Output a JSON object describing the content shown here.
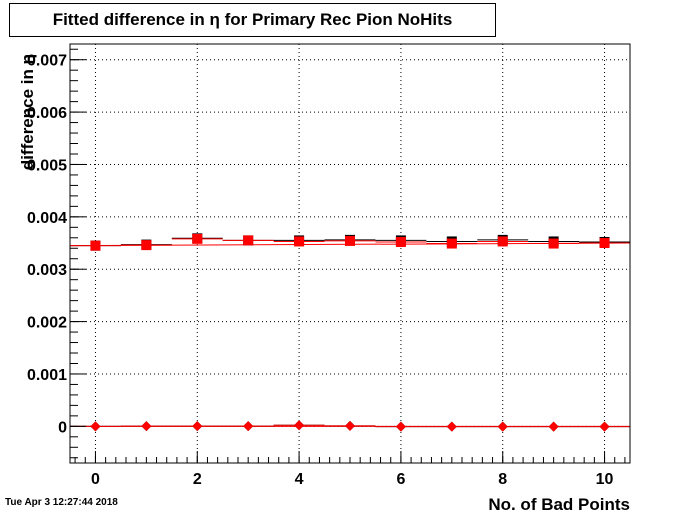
{
  "chart_data": {
    "type": "scatter",
    "title": "Fitted difference in  η for Primary Rec Pion NoHits",
    "xlabel": "No. of Bad Points",
    "ylabel": "difference in η",
    "xlim": [
      -0.5,
      10.5
    ],
    "ylim": [
      -0.0007,
      0.0073
    ],
    "grid": true,
    "x_ticks": [
      "0",
      "2",
      "4",
      "6",
      "8",
      "10"
    ],
    "y_ticks": [
      "0",
      "0.001",
      "0.002",
      "0.003",
      "0.004",
      "0.005",
      "0.006",
      "0.007"
    ],
    "series": [
      {
        "marker": "square",
        "color": "#ff0000",
        "x": [
          0,
          1,
          2,
          3,
          4,
          5,
          6,
          7,
          8,
          9,
          10
        ],
        "values": [
          0.00345,
          0.00346,
          0.00358,
          0.00355,
          0.00353,
          0.00354,
          0.00352,
          0.00349,
          0.00353,
          0.00349,
          0.0035
        ]
      },
      {
        "marker": "square",
        "color": "#000000",
        "x": [
          0,
          1,
          2,
          3,
          4,
          5,
          6,
          7,
          8,
          9,
          10
        ],
        "values": [
          0.00345,
          0.00347,
          0.00359,
          0.00355,
          0.00355,
          0.00356,
          0.00355,
          0.00353,
          0.00356,
          0.00353,
          0.00352
        ]
      },
      {
        "marker": "diamond",
        "color": "#ff0000",
        "x": [
          0,
          1,
          2,
          3,
          4,
          5,
          6,
          7,
          8,
          9,
          10
        ],
        "values": [
          0.0,
          5e-06,
          5e-06,
          5e-06,
          2e-05,
          1e-05,
          -5e-06,
          -5e-06,
          -5e-06,
          -5e-06,
          -5e-06
        ]
      },
      {
        "marker": "diamond",
        "color": "#000000",
        "x": [
          0,
          1,
          2,
          3,
          4,
          5,
          6,
          7,
          8,
          9,
          10
        ],
        "values": [
          0.0,
          5e-06,
          5e-06,
          5e-06,
          2e-05,
          1e-05,
          -5e-06,
          -5e-06,
          -5e-06,
          -5e-06,
          -5e-06
        ]
      }
    ],
    "fit_lines": [
      {
        "color": "#ff0000",
        "x": [
          -0.5,
          10.5
        ],
        "values": [
          0.00345,
          0.0035
        ]
      },
      {
        "color": "#ff0000",
        "x": [
          -0.5,
          10.5
        ],
        "values": [
          0.0,
          0.0
        ]
      }
    ]
  },
  "timestamp": "Tue Apr  3 12:27:44 2018"
}
